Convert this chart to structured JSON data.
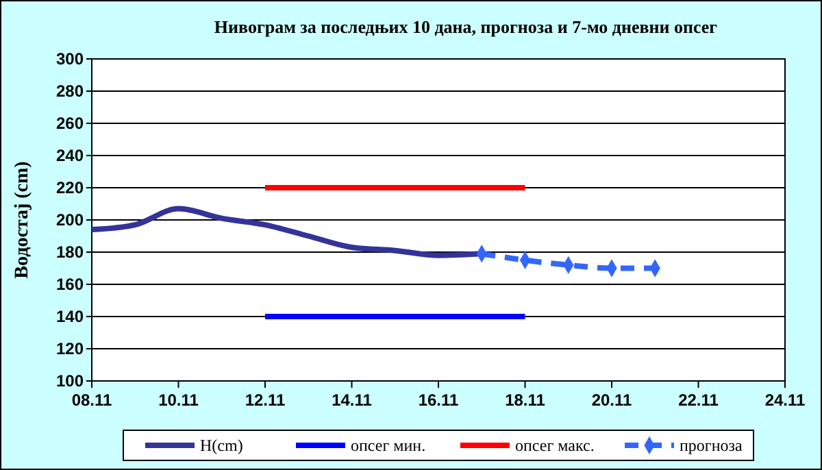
{
  "chart_data": {
    "type": "line",
    "title": "Нивограм за последњих 10 дана, прогноза и 7-мо дневни опсег",
    "ylabel": "Водостај (cm)",
    "xlim": [
      "--11-08",
      "--11-24"
    ],
    "xticks": [
      {
        "value": "--11-08",
        "label": "08.11"
      },
      {
        "value": "--11-10",
        "label": "10.11"
      },
      {
        "value": "--11-12",
        "label": "12.11"
      },
      {
        "value": "--11-14",
        "label": "14.11"
      },
      {
        "value": "--11-16",
        "label": "16.11"
      },
      {
        "value": "--11-18",
        "label": "18.11"
      },
      {
        "value": "--11-20",
        "label": "20.11"
      },
      {
        "value": "--11-22",
        "label": "22.11"
      },
      {
        "value": "--11-24",
        "label": "24.11"
      }
    ],
    "ylim": [
      100,
      300
    ],
    "yticks": [
      100,
      120,
      140,
      160,
      180,
      200,
      220,
      240,
      260,
      280,
      300
    ],
    "grid": "y",
    "legend": "bottom",
    "series": [
      {
        "name": "H(cm)",
        "color": "#333399",
        "x": [
          "--11-08",
          "--11-09",
          "--11-10",
          "--11-11",
          "--11-12",
          "--11-13",
          "--11-14",
          "--11-15",
          "--11-16",
          "--11-17"
        ],
        "values": [
          194,
          197,
          207,
          201,
          197,
          190,
          183,
          181,
          178,
          179
        ]
      },
      {
        "name": "опсег мин.",
        "color": "#0000ff",
        "x": [
          "--11-12",
          "--11-18"
        ],
        "values": [
          140,
          140
        ]
      },
      {
        "name": "опсег макс.",
        "color": "#ff0000",
        "x": [
          "--11-12",
          "--11-18"
        ],
        "values": [
          220,
          220
        ]
      },
      {
        "name": "прогноза",
        "color": "#3366ff",
        "marker": "diamond",
        "line_style": "dashed",
        "x": [
          "--11-17",
          "--11-18",
          "--11-19",
          "--11-20",
          "--11-21"
        ],
        "values": [
          179,
          175,
          172,
          170,
          170
        ]
      }
    ]
  }
}
